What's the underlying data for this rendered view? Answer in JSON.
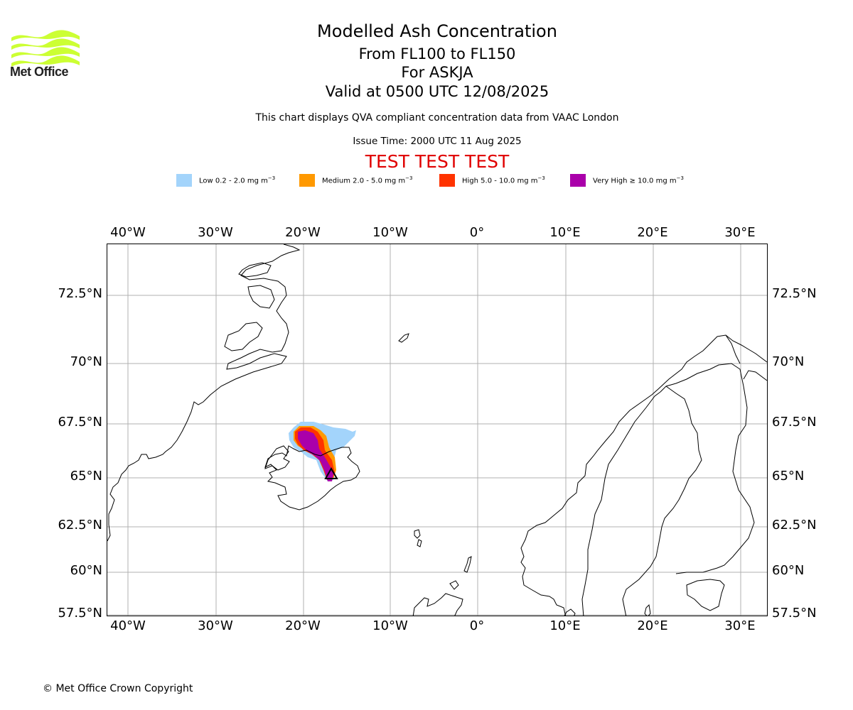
{
  "header": {
    "title": "Modelled Ash Concentration",
    "level": "From FL100 to FL150",
    "volcano": "For ASKJA",
    "valid": "Valid at 0500 UTC 12/08/2025",
    "description": "This chart displays QVA compliant concentration data from VAAC London",
    "issue_time": "Issue Time: 2000 UTC 11 Aug 2025",
    "test_banner": "TEST TEST TEST"
  },
  "logo": {
    "text": "Met Office",
    "color": "#ccff33",
    "icon": "met-office-wave-logo"
  },
  "legend": [
    {
      "label": "Low 0.2 - 2.0 mg m",
      "exp": "−3",
      "color": "#a3d4fb"
    },
    {
      "label": "Medium 2.0 - 5.0 mg m",
      "exp": "−3",
      "color": "#ff9900"
    },
    {
      "label": "High 5.0 - 10.0 mg m",
      "exp": "−3",
      "color": "#ff3300"
    },
    {
      "label": "Very High  ≥  10.0 mg m",
      "exp": "−3",
      "color": "#aa00aa"
    }
  ],
  "map": {
    "lon_labels": [
      "40°W",
      "30°W",
      "20°W",
      "10°W",
      "0°",
      "10°E",
      "20°E",
      "30°E"
    ],
    "lat_labels": [
      "72.5°N",
      "70°N",
      "67.5°N",
      "65°N",
      "62.5°N",
      "60°N",
      "57.5°N"
    ],
    "grid_on": true,
    "volcano_marker": "triangle-icon"
  },
  "footer": {
    "copyright": "© Met Office Crown Copyright"
  }
}
